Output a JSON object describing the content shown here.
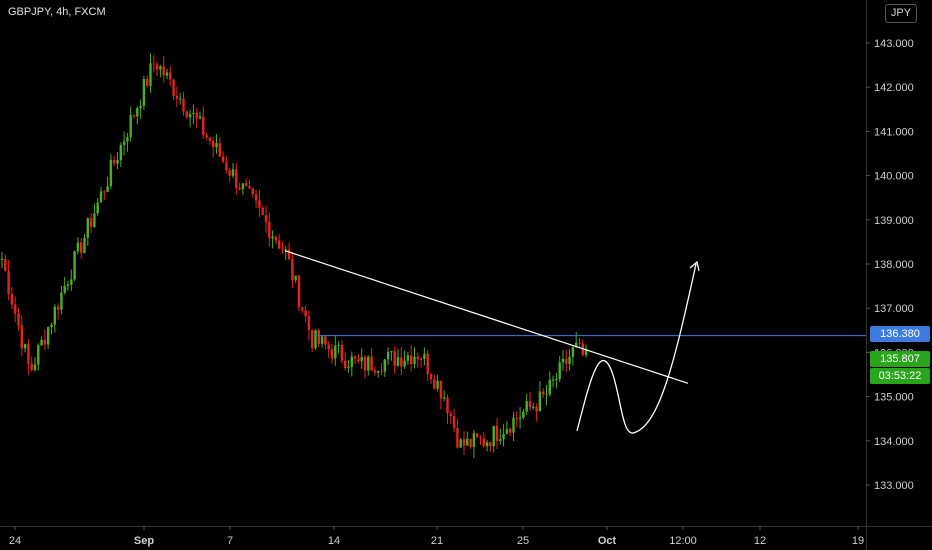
{
  "header": {
    "symbol": "GBPJPY, 4h, FXCM",
    "currency": "JPY"
  },
  "chart_data": {
    "type": "candlestick",
    "y_ticks": [
      "143.000",
      "142.000",
      "141.000",
      "140.000",
      "139.000",
      "138.000",
      "137.000",
      "136.000",
      "135.000",
      "134.000",
      "133.000"
    ],
    "x_ticks": [
      {
        "label": "24",
        "bold": false
      },
      {
        "label": "Sep",
        "bold": true
      },
      {
        "label": "7",
        "bold": false
      },
      {
        "label": "14",
        "bold": false
      },
      {
        "label": "21",
        "bold": false
      },
      {
        "label": "25",
        "bold": false
      },
      {
        "label": "Oct",
        "bold": true
      },
      {
        "label": "12:00",
        "bold": false
      },
      {
        "label": "12",
        "bold": false
      },
      {
        "label": "19",
        "bold": false
      }
    ],
    "ylim": [
      132.7,
      143.5
    ],
    "key_points": [
      138.3,
      135.55,
      142.6,
      138.3,
      136.3,
      135.7,
      136.0,
      135.0,
      133.9,
      134.0,
      135.0,
      136.1,
      135.8
    ],
    "horizontal_line": 136.38,
    "trendline": {
      "start_price": 138.3,
      "end_price": 135.3
    },
    "price_labels": {
      "level": "136.380",
      "last": "135.807",
      "countdown": "03:53:22"
    },
    "colors": {
      "up": "#4caf23",
      "down": "#e6241c",
      "level": "#3d7be0",
      "last": "#29a51c",
      "line": "#ffffff"
    }
  }
}
